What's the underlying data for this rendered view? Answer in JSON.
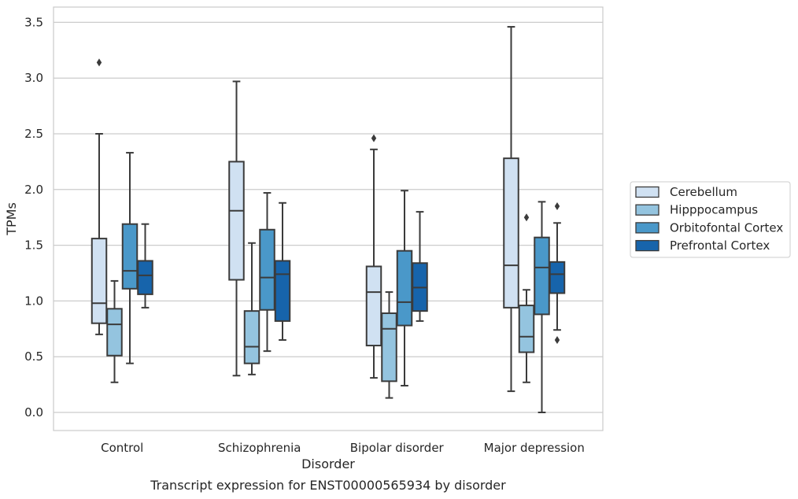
{
  "chart_data": {
    "type": "box",
    "ylabel": "TPMs",
    "xlabel": "Disorder",
    "caption": "Transcript expression for ENST00000565934 by disorder",
    "ylim": [
      -0.16,
      3.65
    ],
    "yticks": [
      "0.0",
      "0.5",
      "1.0",
      "1.5",
      "2.0",
      "2.5",
      "3.0",
      "3.5"
    ],
    "grid": "horizontal",
    "legend_position": "right",
    "categories": [
      "Control",
      "Schizophrenia",
      "Bipolar disorder",
      "Major depression"
    ],
    "series": [
      {
        "name": "Cerebellum",
        "color": "#d0e1f2",
        "boxes": [
          {
            "whislo": 0.7,
            "q1": 0.8,
            "med": 0.98,
            "q3": 1.56,
            "whishi": 2.5,
            "fliers": [
              3.14
            ]
          },
          {
            "whislo": 0.33,
            "q1": 1.19,
            "med": 1.81,
            "q3": 2.25,
            "whishi": 2.97,
            "fliers": []
          },
          {
            "whislo": 0.31,
            "q1": 0.6,
            "med": 1.08,
            "q3": 1.31,
            "whishi": 2.36,
            "fliers": [
              2.46
            ]
          },
          {
            "whislo": 0.19,
            "q1": 0.94,
            "med": 1.32,
            "q3": 2.28,
            "whishi": 3.46,
            "fliers": []
          }
        ]
      },
      {
        "name": "Hipppocampus",
        "color": "#94c4df",
        "boxes": [
          {
            "whislo": 0.27,
            "q1": 0.51,
            "med": 0.79,
            "q3": 0.93,
            "whishi": 1.18,
            "fliers": []
          },
          {
            "whislo": 0.34,
            "q1": 0.44,
            "med": 0.59,
            "q3": 0.91,
            "whishi": 1.52,
            "fliers": []
          },
          {
            "whislo": 0.13,
            "q1": 0.28,
            "med": 0.75,
            "q3": 0.89,
            "whishi": 1.08,
            "fliers": []
          },
          {
            "whislo": 0.27,
            "q1": 0.54,
            "med": 0.68,
            "q3": 0.96,
            "whishi": 1.1,
            "fliers": [
              1.75
            ]
          }
        ]
      },
      {
        "name": "Orbitofontal Cortex",
        "color": "#4a98c9",
        "boxes": [
          {
            "whislo": 0.44,
            "q1": 1.11,
            "med": 1.27,
            "q3": 1.69,
            "whishi": 2.33,
            "fliers": []
          },
          {
            "whislo": 0.55,
            "q1": 0.92,
            "med": 1.21,
            "q3": 1.64,
            "whishi": 1.97,
            "fliers": []
          },
          {
            "whislo": 0.24,
            "q1": 0.78,
            "med": 0.99,
            "q3": 1.45,
            "whishi": 1.99,
            "fliers": []
          },
          {
            "whislo": 0.0,
            "q1": 0.88,
            "med": 1.3,
            "q3": 1.57,
            "whishi": 1.89,
            "fliers": []
          }
        ]
      },
      {
        "name": "Prefrontal Cortex",
        "color": "#1764ab",
        "boxes": [
          {
            "whislo": 0.94,
            "q1": 1.06,
            "med": 1.23,
            "q3": 1.36,
            "whishi": 1.69,
            "fliers": []
          },
          {
            "whislo": 0.65,
            "q1": 0.82,
            "med": 1.24,
            "q3": 1.36,
            "whishi": 1.88,
            "fliers": []
          },
          {
            "whislo": 0.82,
            "q1": 0.91,
            "med": 1.12,
            "q3": 1.34,
            "whishi": 1.8,
            "fliers": []
          },
          {
            "whislo": 0.74,
            "q1": 1.07,
            "med": 1.24,
            "q3": 1.35,
            "whishi": 1.7,
            "fliers": [
              1.85,
              0.65
            ]
          }
        ]
      }
    ]
  }
}
